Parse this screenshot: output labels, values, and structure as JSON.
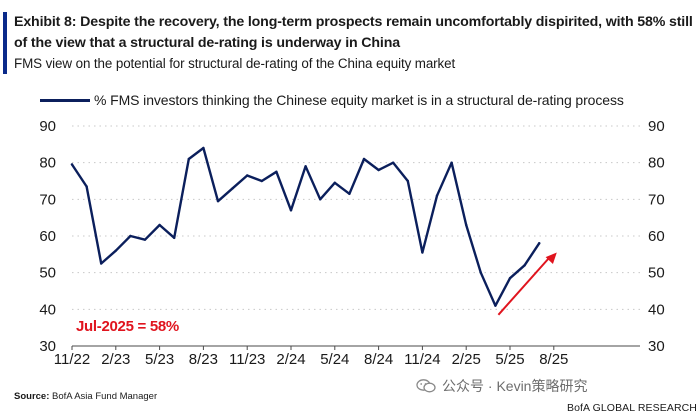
{
  "header": {
    "title": "Exhibit 8: Despite the recovery, the long-term prospects remain uncomfortably dispirited, with 58% still of the view that a structural de-rating is underway in China",
    "subtitle": "FMS view on the potential for structural de-rating of the China equity market"
  },
  "annotation": "Jul-2025 = 58%",
  "footer": {
    "source_label": "Source:",
    "source_text": "BofA Asia Fund Manager",
    "watermark": "公众号 · Kevin策略研究",
    "brand": "BofA GLOBAL RESEARCH"
  },
  "colors": {
    "line": "#0b1f5c",
    "accent": "#0a2a8a",
    "arrow": "#e0141e",
    "grid": "#c8c8c8"
  },
  "icons": {
    "watermark_icon": "wechat-icon"
  },
  "chart_data": {
    "type": "line",
    "title": "",
    "xlabel": "",
    "ylabel": "",
    "x_tick_labels": [
      "11/22",
      "2/23",
      "5/23",
      "8/23",
      "11/23",
      "2/24",
      "5/24",
      "8/24",
      "11/24",
      "2/25",
      "5/25",
      "8/25"
    ],
    "ylim": [
      30,
      90
    ],
    "y_ticks": [
      30,
      40,
      50,
      60,
      70,
      80,
      90
    ],
    "y_tick_labels": [
      "30",
      "40",
      "50",
      "60",
      "70",
      "80",
      "90"
    ],
    "grid": "dotted horizontal",
    "legend_position": "top",
    "series": [
      {
        "name": "% FMS investors thinking the Chinese equity market is in a structural de-rating process",
        "x": [
          "2022-11",
          "2022-12",
          "2023-01",
          "2023-02",
          "2023-03",
          "2023-04",
          "2023-05",
          "2023-06",
          "2023-07",
          "2023-08",
          "2023-09",
          "2023-10",
          "2023-11",
          "2023-12",
          "2024-01",
          "2024-02",
          "2024-03",
          "2024-04",
          "2024-05",
          "2024-06",
          "2024-07",
          "2024-08",
          "2024-09",
          "2024-10",
          "2024-11",
          "2024-12",
          "2025-01",
          "2025-02",
          "2025-03",
          "2025-04",
          "2025-05",
          "2025-06",
          "2025-07"
        ],
        "values": [
          79.5,
          73.5,
          52.5,
          56,
          60,
          59,
          63,
          59.5,
          81,
          84,
          69.5,
          73,
          76.5,
          75,
          77.5,
          67,
          79,
          70,
          74.5,
          71.5,
          81,
          78,
          80,
          75,
          55.5,
          71,
          80,
          63,
          50,
          41,
          48.5,
          52,
          58
        ]
      }
    ],
    "annotations": [
      {
        "text": "Jul-2025 = 58%"
      }
    ]
  }
}
